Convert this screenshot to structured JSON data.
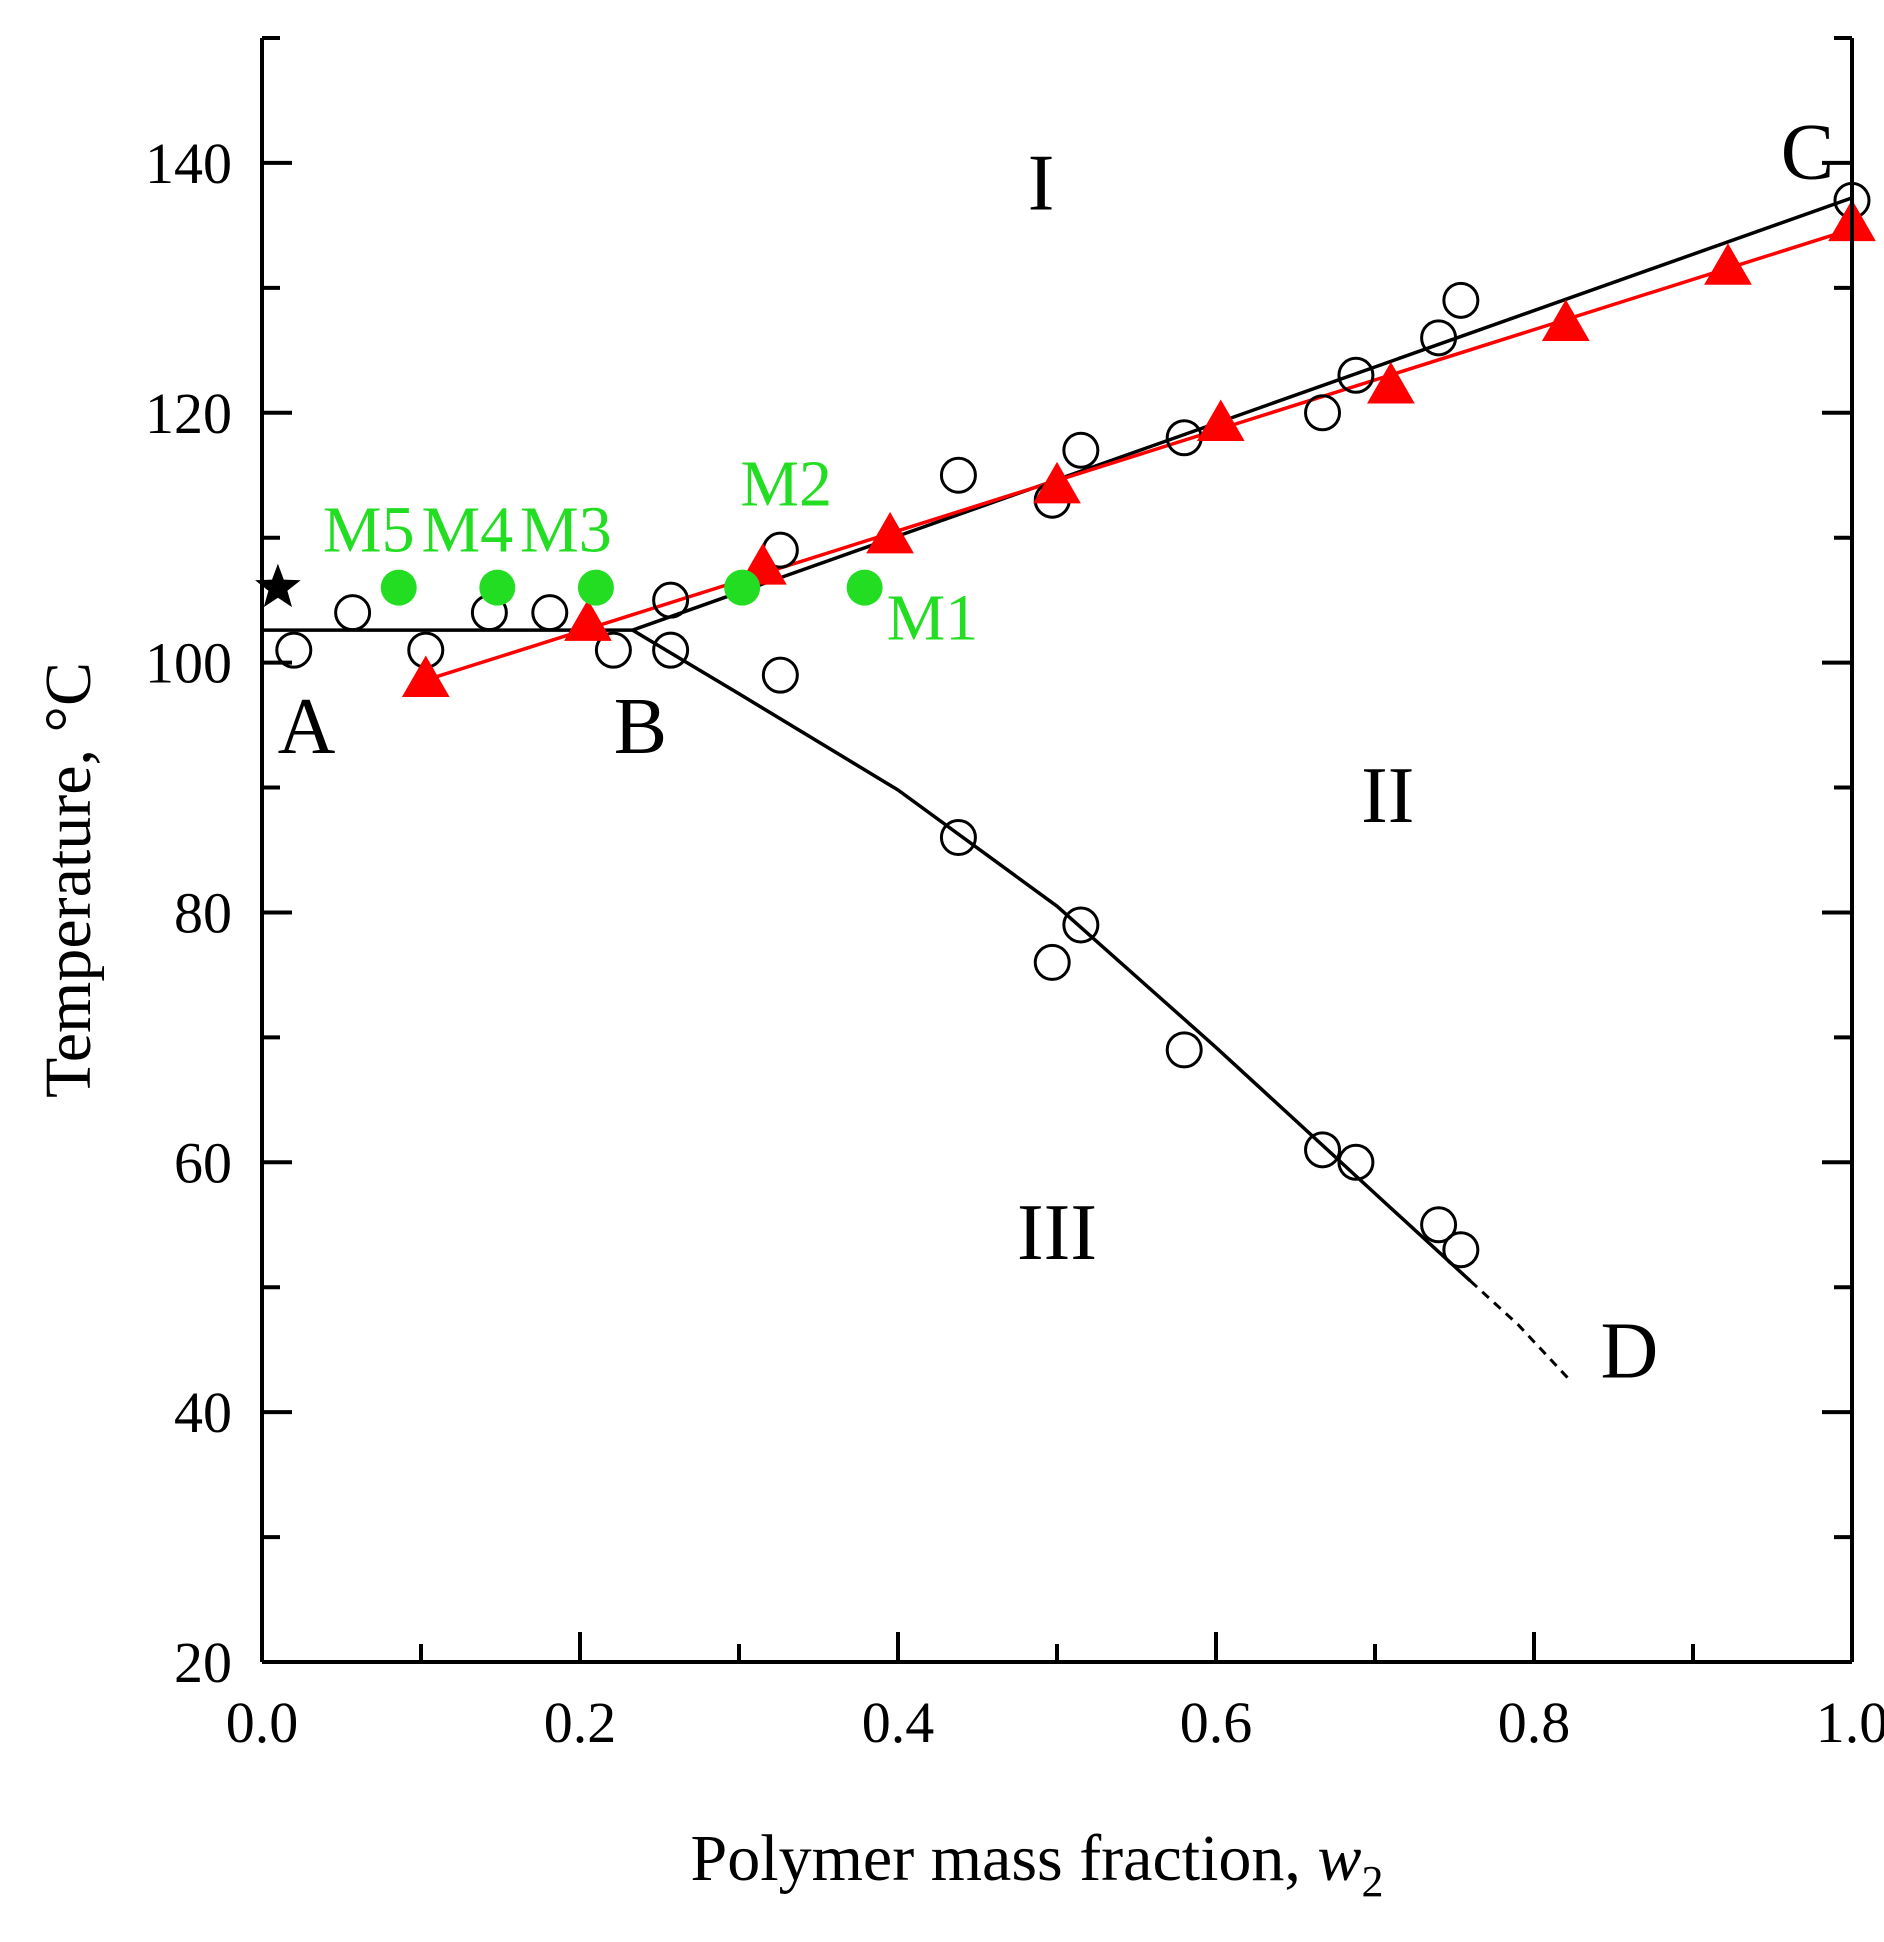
{
  "chart_data": {
    "type": "scatter",
    "title": "",
    "xlabel": "Polymer mass fraction, w",
    "xlabel_subscript": "2",
    "ylabel": "Temperature, °C",
    "xlim": [
      0.0,
      1.0
    ],
    "ylim": [
      20,
      150
    ],
    "x_ticks": [
      0.0,
      0.2,
      0.4,
      0.6,
      0.8,
      1.0
    ],
    "x_tick_labels": [
      "0.0",
      "0.2",
      "0.4",
      "0.6",
      "0.8",
      "1.0"
    ],
    "y_ticks": [
      20,
      40,
      60,
      80,
      100,
      120,
      140
    ],
    "y_tick_labels": [
      "20",
      "40",
      "60",
      "80",
      "100",
      "120",
      "140"
    ],
    "grid": false,
    "series": [
      {
        "name": "open circles",
        "marker": "open-circle",
        "color": "#000000",
        "points": [
          [
            0.02,
            101
          ],
          [
            0.057,
            104
          ],
          [
            0.103,
            101
          ],
          [
            0.143,
            104
          ],
          [
            0.181,
            104
          ],
          [
            0.221,
            101
          ],
          [
            0.257,
            105
          ],
          [
            0.257,
            101
          ],
          [
            0.326,
            109
          ],
          [
            0.326,
            99
          ],
          [
            0.438,
            115
          ],
          [
            0.438,
            86
          ],
          [
            0.497,
            113
          ],
          [
            0.497,
            76
          ],
          [
            0.515,
            117
          ],
          [
            0.515,
            79
          ],
          [
            0.58,
            118
          ],
          [
            0.58,
            69
          ],
          [
            0.667,
            120
          ],
          [
            0.667,
            61
          ],
          [
            0.688,
            123
          ],
          [
            0.688,
            60
          ],
          [
            0.74,
            126
          ],
          [
            0.74,
            55
          ],
          [
            0.754,
            129
          ],
          [
            0.754,
            53
          ],
          [
            1.0,
            137
          ]
        ]
      },
      {
        "name": "red triangles",
        "marker": "filled-triangle",
        "color": "#ff0000",
        "points": [
          [
            0.103,
            98.5
          ],
          [
            0.205,
            103
          ],
          [
            0.315,
            107.5
          ],
          [
            0.395,
            110
          ],
          [
            0.5,
            114
          ],
          [
            0.603,
            119
          ],
          [
            0.71,
            122
          ],
          [
            0.82,
            127
          ],
          [
            0.922,
            131.5
          ],
          [
            1.0,
            135
          ]
        ]
      },
      {
        "name": "samples",
        "marker": "filled-circle",
        "color": "#22dd22",
        "points": [
          {
            "x": 0.379,
            "y": 106,
            "label": "M1"
          },
          {
            "x": 0.302,
            "y": 106,
            "label": "M2"
          },
          {
            "x": 0.21,
            "y": 106,
            "label": "M3"
          },
          {
            "x": 0.148,
            "y": 106,
            "label": "M4"
          },
          {
            "x": 0.086,
            "y": 106,
            "label": "M5"
          }
        ]
      },
      {
        "name": "star",
        "marker": "filled-star",
        "color": "#000000",
        "points": [
          [
            0.01,
            106
          ]
        ]
      }
    ],
    "lines": [
      {
        "name": "A-B",
        "color": "#000000",
        "style": "solid",
        "points": [
          [
            0.0,
            102.6
          ],
          [
            0.233,
            102.6
          ]
        ]
      },
      {
        "name": "B-C",
        "color": "#000000",
        "style": "solid",
        "points": [
          [
            0.233,
            102.6
          ],
          [
            1.0,
            137.2
          ]
        ]
      },
      {
        "name": "B-D",
        "color": "#000000",
        "style": "solid",
        "points": [
          [
            0.233,
            102.6
          ],
          [
            0.3,
            97.5
          ],
          [
            0.4,
            89.8
          ],
          [
            0.5,
            80.5
          ],
          [
            0.6,
            69.2
          ],
          [
            0.7,
            57.5
          ],
          [
            0.76,
            50.5
          ]
        ]
      },
      {
        "name": "B-D extrapolated",
        "color": "#000000",
        "style": "dashed",
        "points": [
          [
            0.76,
            50.5
          ],
          [
            0.79,
            47
          ],
          [
            0.823,
            42.5
          ]
        ]
      },
      {
        "name": "triangle fit",
        "color": "#ff0000",
        "style": "solid",
        "points": [
          [
            0.103,
            98.6
          ],
          [
            1.0,
            134.7
          ]
        ]
      }
    ],
    "region_labels": [
      {
        "text": "I",
        "x": 0.49,
        "y": 138.5
      },
      {
        "text": "II",
        "x": 0.708,
        "y": 89.5
      },
      {
        "text": "III",
        "x": 0.5,
        "y": 54.5
      }
    ],
    "point_labels": [
      {
        "text": "A",
        "x": 0.028,
        "y": 95
      },
      {
        "text": "B",
        "x": 0.238,
        "y": 95
      },
      {
        "text": "C",
        "x": 0.972,
        "y": 141
      },
      {
        "text": "D",
        "x": 0.86,
        "y": 45
      }
    ]
  }
}
